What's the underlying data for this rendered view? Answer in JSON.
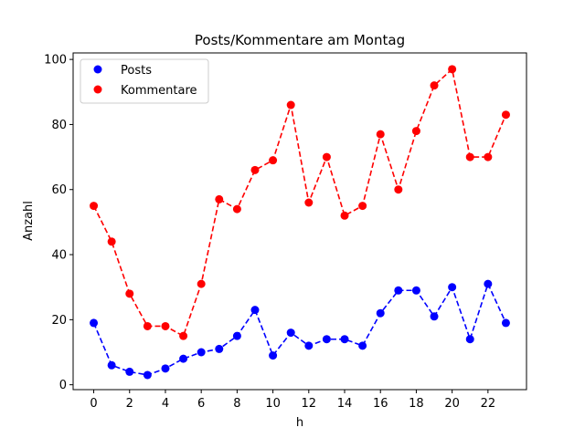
{
  "chart_data": {
    "type": "line",
    "title": "Posts/Kommentare am Montag",
    "xlabel": "h",
    "ylabel": "Anzahl",
    "x": [
      0,
      1,
      2,
      3,
      4,
      5,
      6,
      7,
      8,
      9,
      10,
      11,
      12,
      13,
      14,
      15,
      16,
      17,
      18,
      19,
      20,
      21,
      22,
      23
    ],
    "xlim": [
      -1.15,
      24.15
    ],
    "ylim": [
      -1.5,
      102
    ],
    "xticks": [
      "0",
      "2",
      "4",
      "6",
      "8",
      "10",
      "12",
      "14",
      "16",
      "18",
      "20",
      "22"
    ],
    "yticks": [
      "0",
      "20",
      "40",
      "60",
      "80",
      "100"
    ],
    "grid": false,
    "legend_position": "upper-left",
    "series": [
      {
        "name": "Posts",
        "color": "#0000ff",
        "values": [
          19,
          6,
          4,
          3,
          5,
          8,
          10,
          11,
          15,
          23,
          9,
          16,
          12,
          14,
          14,
          12,
          22,
          29,
          29,
          21,
          30,
          14,
          31,
          19
        ]
      },
      {
        "name": "Kommentare",
        "color": "#ff0000",
        "values": [
          55,
          44,
          28,
          18,
          18,
          15,
          31,
          57,
          54,
          66,
          69,
          86,
          56,
          70,
          52,
          55,
          77,
          60,
          78,
          92,
          97,
          70,
          70,
          83
        ]
      }
    ]
  }
}
